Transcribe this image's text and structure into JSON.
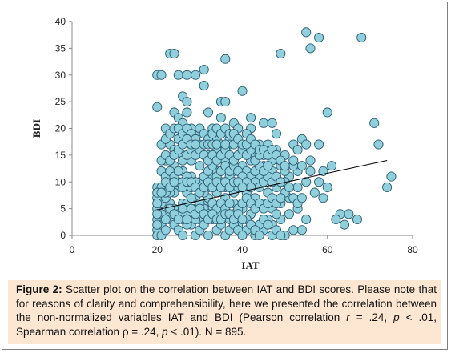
{
  "chart_data": {
    "type": "scatter",
    "xlabel": "IAT",
    "ylabel": "BDI",
    "xlim": [
      0,
      80
    ],
    "ylim": [
      0,
      40
    ],
    "xticks": [
      "0",
      "20",
      "40",
      "60",
      "80"
    ],
    "yticks": [
      "0",
      "5",
      "10",
      "15",
      "20",
      "25",
      "30",
      "35",
      "40"
    ],
    "grid": false,
    "legend": "none",
    "marker_fill": "#8fd0dc",
    "marker_edge": "#2d5c73",
    "trendline_color": "#000000",
    "trendline": {
      "x": [
        20,
        74
      ],
      "y": [
        4.8,
        14.0
      ]
    },
    "points": [
      [
        55,
        38
      ],
      [
        68,
        37
      ],
      [
        58,
        37
      ],
      [
        56,
        35
      ],
      [
        49,
        34
      ],
      [
        23,
        34
      ],
      [
        24,
        34
      ],
      [
        20,
        30
      ],
      [
        21,
        30
      ],
      [
        25,
        30
      ],
      [
        27,
        30
      ],
      [
        29,
        30
      ],
      [
        31,
        31
      ],
      [
        36,
        33
      ],
      [
        40,
        27
      ],
      [
        31,
        28
      ],
      [
        26,
        26
      ],
      [
        27,
        25
      ],
      [
        35,
        25
      ],
      [
        36,
        25
      ],
      [
        24,
        23
      ],
      [
        27,
        23
      ],
      [
        32,
        23
      ],
      [
        60,
        23
      ],
      [
        20,
        24
      ],
      [
        71,
        21
      ],
      [
        72,
        17
      ],
      [
        45,
        21
      ],
      [
        42,
        20
      ],
      [
        42,
        22
      ],
      [
        47,
        21
      ],
      [
        35,
        22
      ],
      [
        38,
        21
      ],
      [
        39,
        20
      ],
      [
        25,
        22
      ],
      [
        26,
        21
      ],
      [
        28,
        20
      ],
      [
        33,
        20
      ],
      [
        48,
        19
      ],
      [
        52,
        17
      ],
      [
        54,
        18
      ],
      [
        55,
        17
      ],
      [
        58,
        17
      ],
      [
        30,
        19
      ],
      [
        34,
        18
      ],
      [
        37,
        18
      ],
      [
        41,
        19
      ],
      [
        44,
        17
      ],
      [
        21,
        17
      ],
      [
        23,
        17
      ],
      [
        22,
        18
      ],
      [
        25,
        18
      ],
      [
        30,
        17
      ],
      [
        35,
        17
      ],
      [
        37,
        17
      ],
      [
        46,
        17
      ],
      [
        48,
        16
      ],
      [
        50,
        15
      ],
      [
        53,
        16
      ],
      [
        56,
        14
      ],
      [
        59,
        12
      ],
      [
        61,
        13
      ],
      [
        65,
        4
      ],
      [
        63,
        4
      ],
      [
        62,
        3
      ],
      [
        67,
        3
      ],
      [
        74,
        9
      ],
      [
        75,
        11
      ],
      [
        64,
        2
      ],
      [
        59,
        7
      ],
      [
        58,
        10
      ],
      [
        60,
        9
      ],
      [
        57,
        8
      ],
      [
        55,
        3
      ],
      [
        53,
        12
      ],
      [
        51,
        11
      ],
      [
        52,
        13
      ],
      [
        49,
        13
      ],
      [
        47,
        12
      ],
      [
        45,
        13
      ],
      [
        50,
        10
      ],
      [
        48,
        9
      ],
      [
        46,
        8
      ],
      [
        44,
        11
      ],
      [
        42,
        14
      ],
      [
        43,
        15
      ],
      [
        45,
        15
      ],
      [
        47,
        14
      ],
      [
        50,
        12
      ],
      [
        52,
        14
      ],
      [
        54,
        13
      ],
      [
        56,
        12
      ],
      [
        55,
        10
      ],
      [
        53,
        9
      ],
      [
        51,
        7
      ],
      [
        49,
        6
      ],
      [
        47,
        5
      ],
      [
        45,
        6
      ],
      [
        43,
        7
      ],
      [
        41,
        8
      ],
      [
        40,
        10
      ],
      [
        38,
        12
      ],
      [
        36,
        14
      ],
      [
        34,
        16
      ],
      [
        32,
        15
      ],
      [
        30,
        13
      ],
      [
        28,
        14
      ],
      [
        26,
        15
      ],
      [
        24,
        16
      ],
      [
        22,
        14
      ],
      [
        21,
        12
      ],
      [
        23,
        10
      ],
      [
        25,
        9
      ],
      [
        27,
        8
      ],
      [
        29,
        7
      ],
      [
        31,
        6
      ],
      [
        33,
        5
      ],
      [
        35,
        4
      ],
      [
        37,
        3
      ],
      [
        39,
        2
      ],
      [
        41,
        1
      ],
      [
        43,
        0
      ],
      [
        45,
        1
      ],
      [
        47,
        2
      ],
      [
        49,
        3
      ],
      [
        51,
        4
      ],
      [
        53,
        5
      ],
      [
        54,
        1
      ],
      [
        52,
        1
      ],
      [
        50,
        0
      ],
      [
        48,
        4
      ],
      [
        46,
        3
      ],
      [
        44,
        2
      ],
      [
        42,
        4
      ],
      [
        40,
        5
      ],
      [
        38,
        6
      ],
      [
        36,
        7
      ],
      [
        34,
        8
      ],
      [
        32,
        9
      ],
      [
        30,
        10
      ],
      [
        28,
        11
      ],
      [
        26,
        12
      ],
      [
        24,
        13
      ],
      [
        22,
        11
      ],
      [
        20,
        9
      ],
      [
        20,
        7
      ],
      [
        20,
        5
      ],
      [
        20,
        3
      ],
      [
        20,
        1
      ],
      [
        20,
        0
      ],
      [
        21,
        2
      ],
      [
        22,
        4
      ],
      [
        23,
        6
      ],
      [
        24,
        8
      ],
      [
        25,
        10
      ],
      [
        26,
        6
      ],
      [
        27,
        4
      ],
      [
        28,
        2
      ],
      [
        29,
        0
      ],
      [
        30,
        3
      ],
      [
        31,
        5
      ],
      [
        32,
        7
      ],
      [
        33,
        11
      ],
      [
        34,
        12
      ],
      [
        35,
        10
      ],
      [
        36,
        9
      ],
      [
        37,
        11
      ],
      [
        38,
        8
      ],
      [
        39,
        9
      ],
      [
        40,
        13
      ],
      [
        41,
        12
      ],
      [
        42,
        11
      ],
      [
        43,
        10
      ],
      [
        44,
        9
      ],
      [
        45,
        10
      ],
      [
        46,
        11
      ],
      [
        47,
        10
      ],
      [
        48,
        11
      ],
      [
        49,
        10
      ],
      [
        50,
        8
      ],
      [
        51,
        9
      ],
      [
        52,
        7
      ],
      [
        53,
        6
      ],
      [
        54,
        7
      ],
      [
        20,
        2
      ],
      [
        21,
        0
      ],
      [
        22,
        1
      ],
      [
        23,
        3
      ],
      [
        24,
        2
      ],
      [
        25,
        1
      ],
      [
        26,
        0
      ],
      [
        27,
        2
      ],
      [
        28,
        4
      ],
      [
        29,
        3
      ],
      [
        30,
        1
      ],
      [
        31,
        2
      ],
      [
        32,
        0
      ],
      [
        33,
        3
      ],
      [
        34,
        1
      ],
      [
        35,
        2
      ],
      [
        36,
        0
      ],
      [
        37,
        1
      ],
      [
        38,
        2
      ],
      [
        39,
        1
      ],
      [
        40,
        0
      ],
      [
        41,
        3
      ],
      [
        42,
        2
      ],
      [
        43,
        1
      ],
      [
        44,
        0
      ],
      [
        45,
        3
      ],
      [
        46,
        2
      ],
      [
        47,
        0
      ],
      [
        48,
        1
      ],
      [
        49,
        0
      ],
      [
        21,
        6
      ],
      [
        22,
        7
      ],
      [
        23,
        8
      ],
      [
        24,
        5
      ],
      [
        25,
        4
      ],
      [
        26,
        3
      ],
      [
        27,
        6
      ],
      [
        28,
        7
      ],
      [
        29,
        5
      ],
      [
        30,
        6
      ],
      [
        31,
        8
      ],
      [
        32,
        4
      ],
      [
        33,
        6
      ],
      [
        34,
        5
      ],
      [
        35,
        6
      ],
      [
        36,
        5
      ],
      [
        37,
        6
      ],
      [
        38,
        4
      ],
      [
        39,
        5
      ],
      [
        40,
        6
      ],
      [
        41,
        7
      ],
      [
        42,
        6
      ],
      [
        43,
        5
      ],
      [
        44,
        6
      ],
      [
        45,
        5
      ],
      [
        46,
        6
      ],
      [
        47,
        7
      ],
      [
        48,
        6
      ],
      [
        49,
        7
      ],
      [
        21,
        9
      ],
      [
        22,
        8
      ],
      [
        23,
        12
      ],
      [
        24,
        11
      ],
      [
        25,
        12
      ],
      [
        26,
        10
      ],
      [
        27,
        11
      ],
      [
        28,
        9
      ],
      [
        29,
        10
      ],
      [
        30,
        9
      ],
      [
        31,
        11
      ],
      [
        32,
        12
      ],
      [
        33,
        13
      ],
      [
        34,
        11
      ],
      [
        35,
        12
      ],
      [
        36,
        13
      ],
      [
        37,
        12
      ],
      [
        38,
        13
      ],
      [
        39,
        12
      ],
      [
        40,
        11
      ],
      [
        41,
        10
      ],
      [
        42,
        9
      ],
      [
        43,
        12
      ],
      [
        44,
        13
      ],
      [
        45,
        12
      ],
      [
        46,
        13
      ],
      [
        21,
        14
      ],
      [
        22,
        15
      ],
      [
        23,
        14
      ],
      [
        24,
        15
      ],
      [
        25,
        16
      ],
      [
        26,
        14
      ],
      [
        27,
        15
      ],
      [
        28,
        16
      ],
      [
        29,
        15
      ],
      [
        30,
        16
      ],
      [
        31,
        15
      ],
      [
        32,
        14
      ],
      [
        33,
        15
      ],
      [
        34,
        14
      ],
      [
        35,
        15
      ],
      [
        36,
        16
      ],
      [
        37,
        15
      ],
      [
        38,
        14
      ],
      [
        39,
        15
      ],
      [
        40,
        16
      ],
      [
        41,
        15
      ],
      [
        42,
        16
      ],
      [
        43,
        14
      ],
      [
        44,
        15
      ],
      [
        21,
        4
      ],
      [
        22,
        3
      ],
      [
        23,
        5
      ],
      [
        24,
        4
      ],
      [
        25,
        3
      ],
      [
        26,
        5
      ],
      [
        27,
        3
      ],
      [
        28,
        5
      ],
      [
        29,
        4
      ],
      [
        30,
        5
      ],
      [
        31,
        4
      ],
      [
        32,
        3
      ],
      [
        33,
        4
      ],
      [
        34,
        3
      ],
      [
        35,
        3
      ],
      [
        36,
        4
      ],
      [
        37,
        4
      ],
      [
        38,
        3
      ],
      [
        39,
        4
      ],
      [
        40,
        3
      ],
      [
        20,
        8
      ],
      [
        20,
        6
      ],
      [
        20,
        4
      ],
      [
        21,
        8
      ],
      [
        22,
        10
      ],
      [
        23,
        9
      ],
      [
        24,
        10
      ],
      [
        26,
        9
      ],
      [
        27,
        10
      ],
      [
        28,
        10
      ],
      [
        29,
        9
      ],
      [
        30,
        8
      ],
      [
        31,
        9
      ],
      [
        32,
        10
      ],
      [
        33,
        9
      ],
      [
        34,
        10
      ],
      [
        35,
        9
      ],
      [
        36,
        10
      ],
      [
        37,
        9
      ],
      [
        38,
        10
      ],
      [
        39,
        10
      ],
      [
        40,
        9
      ],
      [
        22,
        20
      ],
      [
        23,
        19
      ],
      [
        24,
        20
      ],
      [
        25,
        20
      ],
      [
        26,
        19
      ],
      [
        27,
        20
      ],
      [
        28,
        19
      ],
      [
        29,
        18
      ],
      [
        30,
        20
      ],
      [
        31,
        19
      ],
      [
        32,
        18
      ],
      [
        33,
        19
      ],
      [
        34,
        20
      ],
      [
        35,
        19
      ],
      [
        36,
        20
      ],
      [
        37,
        19
      ],
      [
        38,
        19
      ],
      [
        26,
        17
      ],
      [
        27,
        18
      ],
      [
        28,
        17
      ],
      [
        29,
        17
      ],
      [
        31,
        17
      ],
      [
        32,
        17
      ],
      [
        33,
        17
      ],
      [
        34,
        17
      ],
      [
        36,
        17
      ],
      [
        38,
        17
      ],
      [
        39,
        18
      ],
      [
        40,
        17
      ],
      [
        41,
        17
      ],
      [
        42,
        18
      ],
      [
        43,
        17
      ],
      [
        44,
        16
      ],
      [
        45,
        16
      ],
      [
        46,
        15
      ],
      [
        47,
        16
      ],
      [
        48,
        15
      ],
      [
        49,
        14
      ],
      [
        50,
        13
      ]
    ]
  },
  "caption": {
    "figure_label": "Figure 2:",
    "part1": " Scatter plot on the correlation between IAT and BDI scores. Please note that for reasons of clarity and comprehensibility, here we presented the correlation between the non-normalized variables IAT and BDI (Pearson correlation ",
    "r_symbol": "r",
    "part2": " = .24, ",
    "p_symbol_1": "p",
    "part3": " < .01, Spearman correlation ρ = .24, ",
    "p_symbol_2": "p",
    "part4": " < .01). N = 895."
  }
}
